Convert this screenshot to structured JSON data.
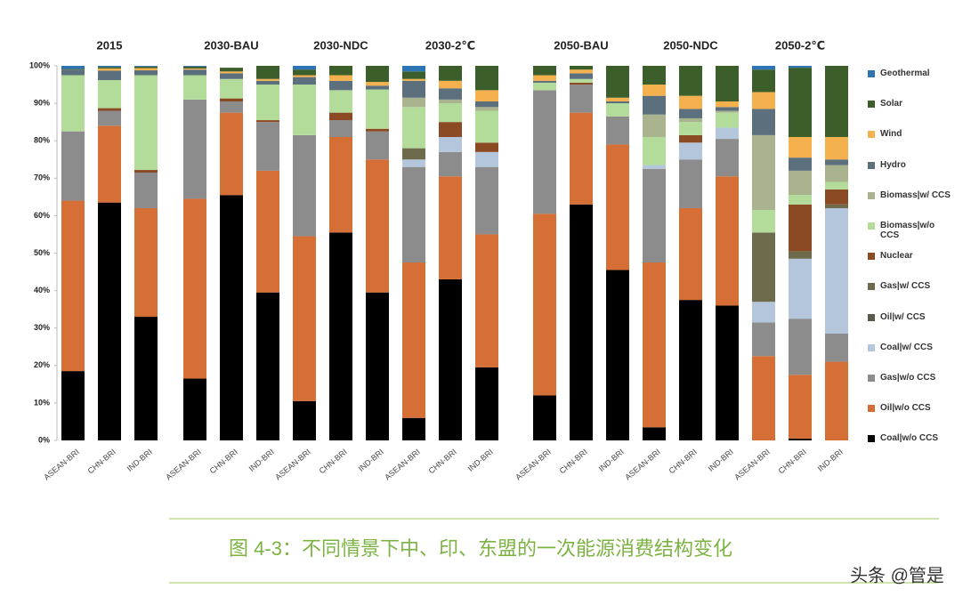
{
  "chart_data": {
    "type": "bar",
    "stacked": true,
    "groups": [
      "2015",
      "2030-BAU",
      "2030-NDC",
      "2030-2℃",
      "2050-BAU",
      "2050-NDC",
      "2050-2℃"
    ],
    "categories": [
      "ASEAN-BRI",
      "CHN-BRI",
      "IND-BRI",
      "ASEAN-BRI",
      "CHN-BRI",
      "IND-BRI",
      "ASEAN-BRI",
      "CHN-BRI",
      "IND-BRI",
      "ASEAN-BRI",
      "CHN-BRI",
      "IND-BRI",
      "ASEAN-BRI",
      "CHN-BRI",
      "IND-BRI",
      "ASEAN-BRI",
      "CHN-BRI",
      "IND-BRI",
      "ASEAN-BRI",
      "CHN-BRI",
      "IND-BRI"
    ],
    "ylim": [
      0,
      100
    ],
    "yticks": [
      {
        "value": 0,
        "label": "0%"
      },
      {
        "value": 10,
        "label": "10%"
      },
      {
        "value": 20,
        "label": "20%"
      },
      {
        "value": 30,
        "label": "30%"
      },
      {
        "value": 40,
        "label": "40%"
      },
      {
        "value": 50,
        "label": "50%"
      },
      {
        "value": 60,
        "label": "60%"
      },
      {
        "value": 70,
        "label": "70%"
      },
      {
        "value": 80,
        "label": "80%"
      },
      {
        "value": 90,
        "label": "90%"
      },
      {
        "value": 100,
        "label": "100%"
      }
    ],
    "series": [
      {
        "name": "Coal|w/o CCS",
        "color": "#000000",
        "values": [
          18.5,
          63.5,
          33,
          16.5,
          65.5,
          39.5,
          10.5,
          55.5,
          39.5,
          6,
          43,
          19.5,
          12,
          63,
          45.5,
          3.5,
          37.5,
          36,
          0,
          0.5,
          0
        ]
      },
      {
        "name": "Oil|w/o CCS",
        "color": "#d56f35",
        "values": [
          45.5,
          20.5,
          29,
          48,
          22,
          32.5,
          44,
          25.5,
          35.5,
          41.5,
          27.5,
          35.5,
          48.5,
          24.5,
          33.5,
          44,
          24.5,
          34.5,
          22.5,
          17,
          21
        ]
      },
      {
        "name": "Gas|w/o CCS",
        "color": "#8c8c8c",
        "values": [
          18.5,
          4,
          9.5,
          26.5,
          3,
          13,
          27,
          4.5,
          7.5,
          25.5,
          6.5,
          18,
          33,
          7.5,
          7.5,
          25,
          13,
          10,
          9,
          15,
          7.5
        ]
      },
      {
        "name": "Coal|w/ CCS",
        "color": "#b4c6dc",
        "values": [
          0,
          0,
          0,
          0,
          0,
          0,
          0,
          0,
          0,
          2,
          4,
          4,
          0,
          0,
          0,
          1,
          4.5,
          3,
          5.5,
          16,
          33.5
        ]
      },
      {
        "name": "Oil|w/ CCS",
        "color": "#5a5a4a",
        "values": [
          0,
          0,
          0,
          0,
          0,
          0,
          0,
          0,
          0,
          0,
          0,
          0,
          0,
          0,
          0,
          0,
          0,
          0,
          0,
          0,
          0
        ]
      },
      {
        "name": "Gas|w/ CCS",
        "color": "#6e6a4c",
        "values": [
          0,
          0,
          0,
          0,
          0,
          0,
          0,
          0,
          0,
          3,
          0,
          0,
          0,
          0,
          0,
          0,
          0,
          0,
          18.5,
          2,
          1
        ]
      },
      {
        "name": "Nuclear",
        "color": "#8b4a24",
        "values": [
          0,
          0.7,
          0.7,
          0,
          0.8,
          0.5,
          0,
          2,
          0.7,
          0,
          4,
          2.5,
          0,
          0.5,
          0,
          0,
          2,
          0,
          0,
          12.5,
          4
        ]
      },
      {
        "name": "Biomass|w/o CCS",
        "color": "#b3dc9a",
        "values": [
          15,
          7.5,
          25.3,
          6.5,
          5.2,
          9.5,
          13.5,
          6,
          10.5,
          11,
          5,
          8.5,
          2,
          1,
          3.5,
          7.5,
          3.5,
          4,
          6,
          2.5,
          2
        ]
      },
      {
        "name": "Biomass|w/ CCS",
        "color": "#a9b48f",
        "values": [
          0,
          0,
          0,
          0,
          0,
          0,
          0,
          0,
          0,
          2.5,
          1,
          1,
          0,
          0,
          0,
          6,
          1,
          0.5,
          20,
          6.5,
          4.5
        ]
      },
      {
        "name": "Hydro",
        "color": "#5b6f7c",
        "values": [
          1.5,
          2.5,
          1.3,
          1.5,
          1.5,
          1,
          2,
          2.5,
          1,
          4.5,
          3,
          1.5,
          0.5,
          1.5,
          0.5,
          5,
          2.5,
          1,
          7,
          3.5,
          1.5
        ]
      },
      {
        "name": "Wind",
        "color": "#f4b14d",
        "values": [
          0,
          0.6,
          0.6,
          0.3,
          0.5,
          0.5,
          0.5,
          1.5,
          1,
          0.5,
          2,
          3,
          1.5,
          1,
          1,
          3,
          3.5,
          1.5,
          4.5,
          5.5,
          6
        ]
      },
      {
        "name": "Solar",
        "color": "#3b5e2b",
        "values": [
          0.2,
          0.4,
          0.4,
          0.5,
          1,
          3.5,
          1.5,
          2.5,
          4.3,
          2,
          4,
          6.5,
          2.5,
          1,
          8.5,
          5,
          8,
          9.5,
          6,
          18.5,
          19
        ]
      },
      {
        "name": "Geothermal",
        "color": "#2e75b6",
        "values": [
          0.8,
          0.3,
          0.2,
          0.2,
          0,
          0,
          1,
          0,
          0,
          1.5,
          0,
          0,
          0,
          0,
          0,
          0,
          0,
          0,
          1,
          0.5,
          0
        ]
      }
    ]
  },
  "caption": "图 4-3：不同情景下中、印、东盟的一次能源消费结构变化",
  "watermark": "头条 @管是"
}
